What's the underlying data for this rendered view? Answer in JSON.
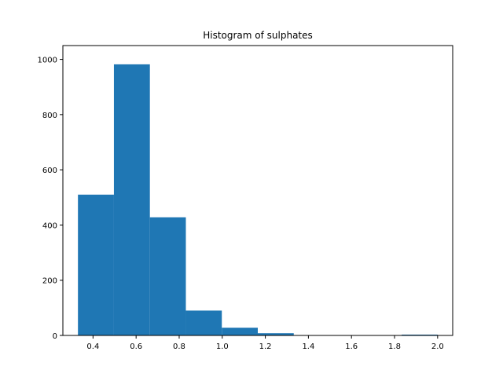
{
  "chart_data": {
    "type": "bar",
    "title": "Histogram of sulphates",
    "xlabel": "",
    "ylabel": "",
    "bin_edges": [
      0.33,
      0.497,
      0.664,
      0.831,
      0.998,
      1.165,
      1.332,
      1.499,
      1.666,
      1.833,
      2.0
    ],
    "values": [
      510,
      982,
      428,
      90,
      28,
      8,
      0,
      0,
      0,
      3
    ],
    "xlim": [
      0.26,
      2.07
    ],
    "ylim": [
      0,
      1050
    ],
    "x_ticks": [
      "0.4",
      "0.6",
      "0.8",
      "1.0",
      "1.2",
      "1.4",
      "1.6",
      "1.8",
      "2.0"
    ],
    "y_ticks": [
      "0",
      "200",
      "400",
      "600",
      "800",
      "1000"
    ],
    "bar_color": "#1f77b4",
    "grid": false,
    "legend": "none"
  }
}
